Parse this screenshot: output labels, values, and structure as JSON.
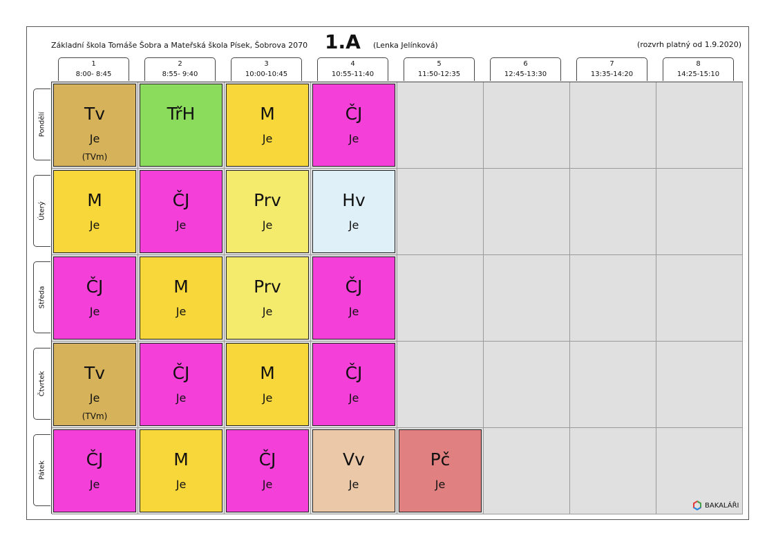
{
  "header": {
    "school": "Základní škola Tomáše Šobra a Mateřská škola Písek, Šobrova 2070",
    "class_name": "1.A",
    "teacher": "(Lenka Jelínková)",
    "valid_from": "(rozvrh platný od 1.9.2020)"
  },
  "periods": [
    {
      "num": "1",
      "time": "8:00- 8:45"
    },
    {
      "num": "2",
      "time": "8:55- 9:40"
    },
    {
      "num": "3",
      "time": "10:00-10:45"
    },
    {
      "num": "4",
      "time": "10:55-11:40"
    },
    {
      "num": "5",
      "time": "11:50-12:35"
    },
    {
      "num": "6",
      "time": "12:45-13:30"
    },
    {
      "num": "7",
      "time": "13:35-14:20"
    },
    {
      "num": "8",
      "time": "14:25-15:10"
    }
  ],
  "days": [
    "Pondělí",
    "Úterý",
    "Středa",
    "Čtvrtek",
    "Pátek"
  ],
  "schedule": [
    [
      {
        "subject": "Tv",
        "teacher": "Je",
        "group": "(TVm)",
        "color": "#d6b35a"
      },
      {
        "subject": "TřH",
        "teacher": "",
        "group": "",
        "color": "#8bdc5c"
      },
      {
        "subject": "M",
        "teacher": "Je",
        "group": "",
        "color": "#f8d73b"
      },
      {
        "subject": "ČJ",
        "teacher": "Je",
        "group": "",
        "color": "#f43fd8"
      },
      null,
      null,
      null,
      null
    ],
    [
      {
        "subject": "M",
        "teacher": "Je",
        "group": "",
        "color": "#f8d73b"
      },
      {
        "subject": "ČJ",
        "teacher": "Je",
        "group": "",
        "color": "#f43fd8"
      },
      {
        "subject": "Prv",
        "teacher": "Je",
        "group": "",
        "color": "#f4ea6c"
      },
      {
        "subject": "Hv",
        "teacher": "Je",
        "group": "",
        "color": "#dff0f8"
      },
      null,
      null,
      null,
      null
    ],
    [
      {
        "subject": "ČJ",
        "teacher": "Je",
        "group": "",
        "color": "#f43fd8"
      },
      {
        "subject": "M",
        "teacher": "Je",
        "group": "",
        "color": "#f8d73b"
      },
      {
        "subject": "Prv",
        "teacher": "Je",
        "group": "",
        "color": "#f4ea6c"
      },
      {
        "subject": "ČJ",
        "teacher": "Je",
        "group": "",
        "color": "#f43fd8"
      },
      null,
      null,
      null,
      null
    ],
    [
      {
        "subject": "Tv",
        "teacher": "Je",
        "group": "(TVm)",
        "color": "#d6b35a"
      },
      {
        "subject": "ČJ",
        "teacher": "Je",
        "group": "",
        "color": "#f43fd8"
      },
      {
        "subject": "M",
        "teacher": "Je",
        "group": "",
        "color": "#f8d73b"
      },
      {
        "subject": "ČJ",
        "teacher": "Je",
        "group": "",
        "color": "#f43fd8"
      },
      null,
      null,
      null,
      null
    ],
    [
      {
        "subject": "ČJ",
        "teacher": "Je",
        "group": "",
        "color": "#f43fd8"
      },
      {
        "subject": "M",
        "teacher": "Je",
        "group": "",
        "color": "#f8d73b"
      },
      {
        "subject": "ČJ",
        "teacher": "Je",
        "group": "",
        "color": "#f43fd8"
      },
      {
        "subject": "Vv",
        "teacher": "Je",
        "group": "",
        "color": "#ebc8a8"
      },
      {
        "subject": "Pč",
        "teacher": "Je",
        "group": "",
        "color": "#e08080"
      },
      null,
      null,
      null
    ]
  ],
  "logo": {
    "text": "BAKALÁŘI",
    "icon": "bakalari-logo-icon"
  }
}
